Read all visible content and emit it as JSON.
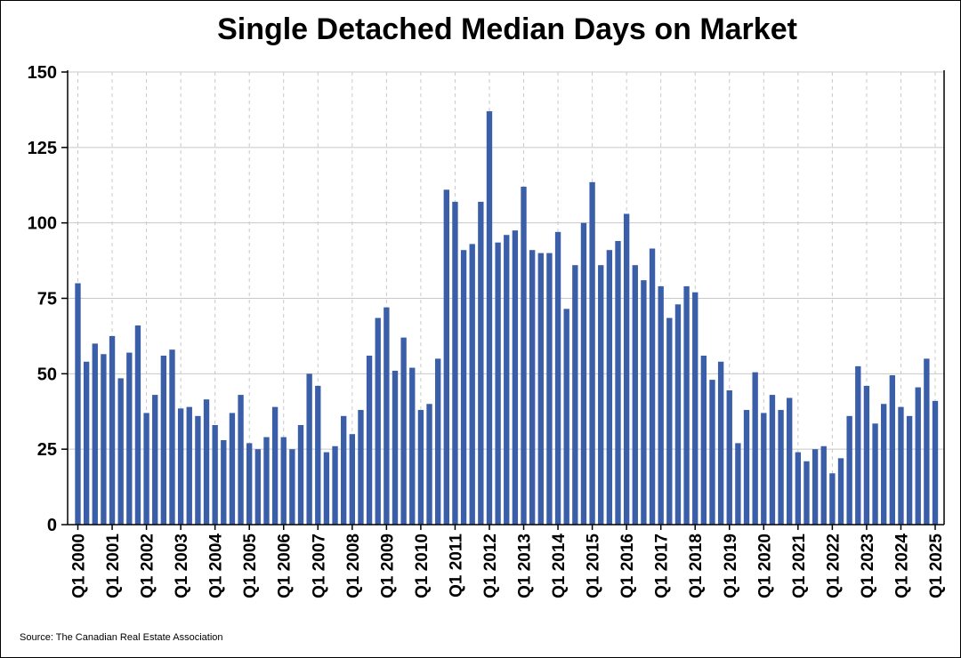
{
  "chart_data": {
    "type": "bar",
    "title": "Single Detached Median Days on Market",
    "xlabel": "",
    "ylabel": "",
    "ylim": [
      0,
      150
    ],
    "yticks": [
      0,
      25,
      50,
      75,
      100,
      125,
      150
    ],
    "grid": {
      "horizontal": true,
      "vertical": "dashed"
    },
    "bar_color": "#3a5fa8",
    "categories": [
      "Q1 2000",
      "Q2 2000",
      "Q3 2000",
      "Q4 2000",
      "Q1 2001",
      "Q2 2001",
      "Q3 2001",
      "Q4 2001",
      "Q1 2002",
      "Q2 2002",
      "Q3 2002",
      "Q4 2002",
      "Q1 2003",
      "Q2 2003",
      "Q3 2003",
      "Q4 2003",
      "Q1 2004",
      "Q2 2004",
      "Q3 2004",
      "Q4 2004",
      "Q1 2005",
      "Q2 2005",
      "Q3 2005",
      "Q4 2005",
      "Q1 2006",
      "Q2 2006",
      "Q3 2006",
      "Q4 2006",
      "Q1 2007",
      "Q2 2007",
      "Q3 2007",
      "Q4 2007",
      "Q1 2008",
      "Q2 2008",
      "Q3 2008",
      "Q4 2008",
      "Q1 2009",
      "Q2 2009",
      "Q3 2009",
      "Q4 2009",
      "Q1 2010",
      "Q2 2010",
      "Q3 2010",
      "Q4 2010",
      "Q1 2011",
      "Q2 2011",
      "Q3 2011",
      "Q4 2011",
      "Q1 2012",
      "Q2 2012",
      "Q3 2012",
      "Q4 2012",
      "Q1 2013",
      "Q2 2013",
      "Q3 2013",
      "Q4 2013",
      "Q1 2014",
      "Q2 2014",
      "Q3 2014",
      "Q4 2014",
      "Q1 2015",
      "Q2 2015",
      "Q3 2015",
      "Q4 2015",
      "Q1 2016",
      "Q2 2016",
      "Q3 2016",
      "Q4 2016",
      "Q1 2017",
      "Q2 2017",
      "Q3 2017",
      "Q4 2017",
      "Q1 2018",
      "Q2 2018",
      "Q3 2018",
      "Q4 2018",
      "Q1 2019",
      "Q2 2019",
      "Q3 2019",
      "Q4 2019",
      "Q1 2020",
      "Q2 2020",
      "Q3 2020",
      "Q4 2020",
      "Q1 2021",
      "Q2 2021",
      "Q3 2021",
      "Q4 2021",
      "Q1 2022",
      "Q2 2022",
      "Q3 2022",
      "Q4 2022",
      "Q1 2023",
      "Q2 2023",
      "Q3 2023",
      "Q4 2023",
      "Q1 2024",
      "Q2 2024",
      "Q3 2024",
      "Q4 2024",
      "Q1 2025"
    ],
    "xtick_labels": [
      "Q1 2000",
      "Q1 2001",
      "Q1 2002",
      "Q1 2003",
      "Q1 2004",
      "Q1 2005",
      "Q1 2006",
      "Q1 2007",
      "Q1 2008",
      "Q1 2009",
      "Q1 2010",
      "Q1 2011",
      "Q1 2012",
      "Q1 2013",
      "Q1 2014",
      "Q1 2015",
      "Q1 2016",
      "Q1 2017",
      "Q1 2018",
      "Q1 2019",
      "Q1 2020",
      "Q1 2021",
      "Q1 2022",
      "Q1 2023",
      "Q1 2024",
      "Q1 2025"
    ],
    "values": [
      80,
      54,
      60,
      56.5,
      62.5,
      48.5,
      57,
      66,
      37,
      43,
      56,
      58,
      38.5,
      39,
      36,
      41.5,
      33,
      28,
      37,
      43,
      27,
      25,
      29,
      39,
      29,
      25,
      33,
      50,
      46,
      24,
      26,
      36,
      30,
      38,
      56,
      68.5,
      72,
      51,
      62,
      52,
      38,
      40,
      55,
      111,
      107,
      91,
      93,
      107,
      137,
      93.5,
      96,
      97.5,
      112,
      91,
      90,
      90,
      97,
      71.5,
      86,
      100,
      113.5,
      86,
      91,
      94,
      103,
      86,
      81,
      91.5,
      79,
      68.5,
      73,
      79,
      77,
      56,
      48,
      54,
      44.5,
      27,
      38,
      50.5,
      37,
      43,
      38,
      42,
      24,
      21,
      25,
      26,
      17,
      22,
      36,
      52.5,
      46,
      33.5,
      40,
      49.5,
      39,
      36,
      45.5,
      55,
      41
    ],
    "source": "Source: The Canadian Real Estate Association"
  }
}
